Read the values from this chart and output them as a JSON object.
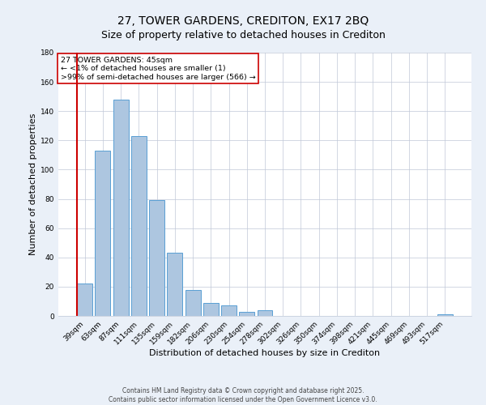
{
  "title": "27, TOWER GARDENS, CREDITON, EX17 2BQ",
  "subtitle": "Size of property relative to detached houses in Crediton",
  "xlabel": "Distribution of detached houses by size in Crediton",
  "ylabel": "Number of detached properties",
  "categories": [
    "39sqm",
    "63sqm",
    "87sqm",
    "111sqm",
    "135sqm",
    "159sqm",
    "182sqm",
    "206sqm",
    "230sqm",
    "254sqm",
    "278sqm",
    "302sqm",
    "326sqm",
    "350sqm",
    "374sqm",
    "398sqm",
    "421sqm",
    "445sqm",
    "469sqm",
    "493sqm",
    "517sqm"
  ],
  "values": [
    22,
    113,
    148,
    123,
    79,
    43,
    18,
    9,
    7,
    3,
    4,
    0,
    0,
    0,
    0,
    0,
    0,
    0,
    0,
    0,
    1
  ],
  "bar_color": "#adc6e0",
  "bar_edge_color": "#5a9fd4",
  "highlight_color": "#cc0000",
  "annotation_box_text": "27 TOWER GARDENS: 45sqm\n← <1% of detached houses are smaller (1)\n>99% of semi-detached houses are larger (566) →",
  "annotation_box_edgecolor": "#cc0000",
  "annotation_box_facecolor": "#ffffff",
  "ylim": [
    0,
    180
  ],
  "yticks": [
    0,
    20,
    40,
    60,
    80,
    100,
    120,
    140,
    160,
    180
  ],
  "footer_line1": "Contains HM Land Registry data © Crown copyright and database right 2025.",
  "footer_line2": "Contains public sector information licensed under the Open Government Licence v3.0.",
  "background_color": "#eaf0f8",
  "plot_bg_color": "#ffffff",
  "title_fontsize": 10,
  "tick_fontsize": 6.5,
  "label_fontsize": 8,
  "footer_fontsize": 5.5
}
